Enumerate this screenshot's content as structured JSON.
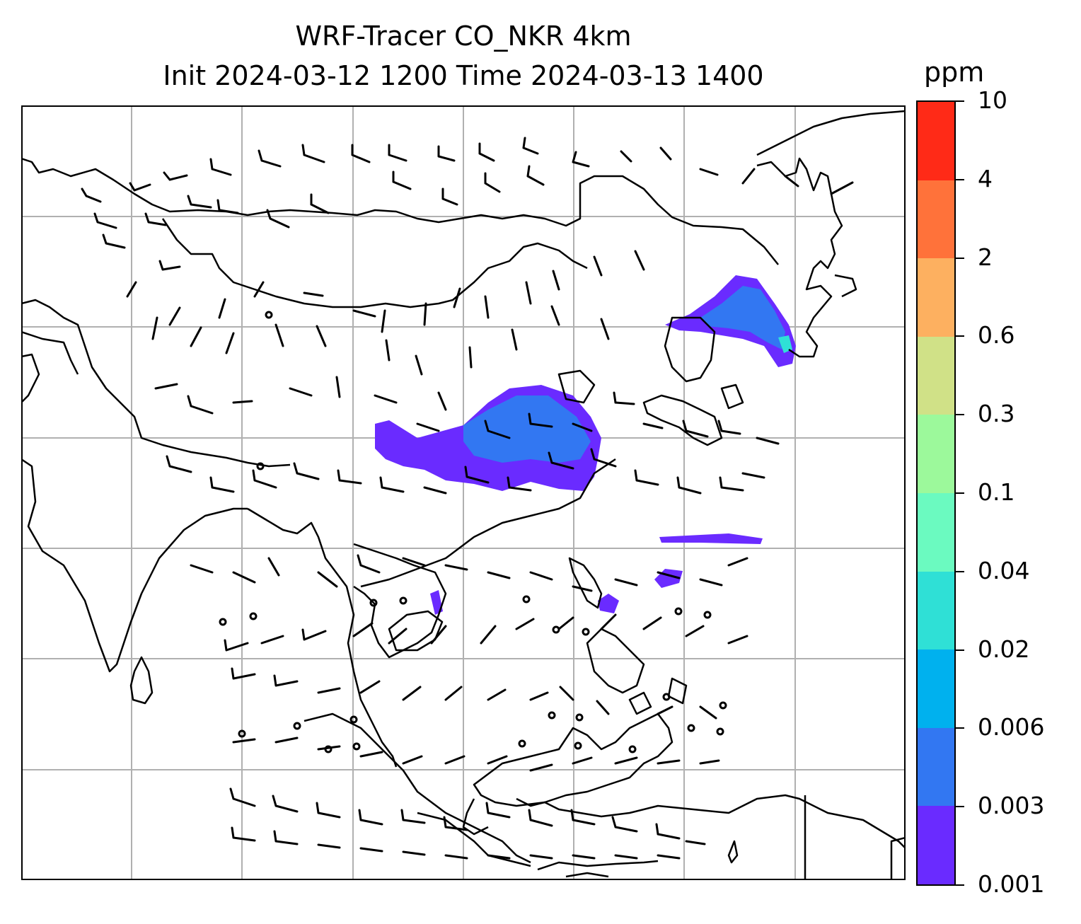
{
  "header": {
    "title_line1": "WRF-Tracer CO_NKR 4km",
    "title_line2": "Init 2024-03-12 1200 Time 2024-03-13 1400"
  },
  "colorbar": {
    "unit": "ppm",
    "ticks": [
      "0.001",
      "0.003",
      "0.006",
      "0.02",
      "0.04",
      "0.1",
      "0.3",
      "0.6",
      "2",
      "4",
      "10"
    ],
    "bin_colors": [
      "#6a2bff",
      "#3277f2",
      "#00b1ee",
      "#2fe0d6",
      "#6bfac0",
      "#9cf99b",
      "#d0e187",
      "#fdb060",
      "#ff723a",
      "#ff2a17"
    ]
  },
  "map": {
    "gridline_color": "#b0b0b0",
    "coastline_color": "#000000",
    "barb_color": "#000000",
    "tracer_colors": {
      "level1": "#6a2bff",
      "level2": "#3277f2"
    }
  }
}
